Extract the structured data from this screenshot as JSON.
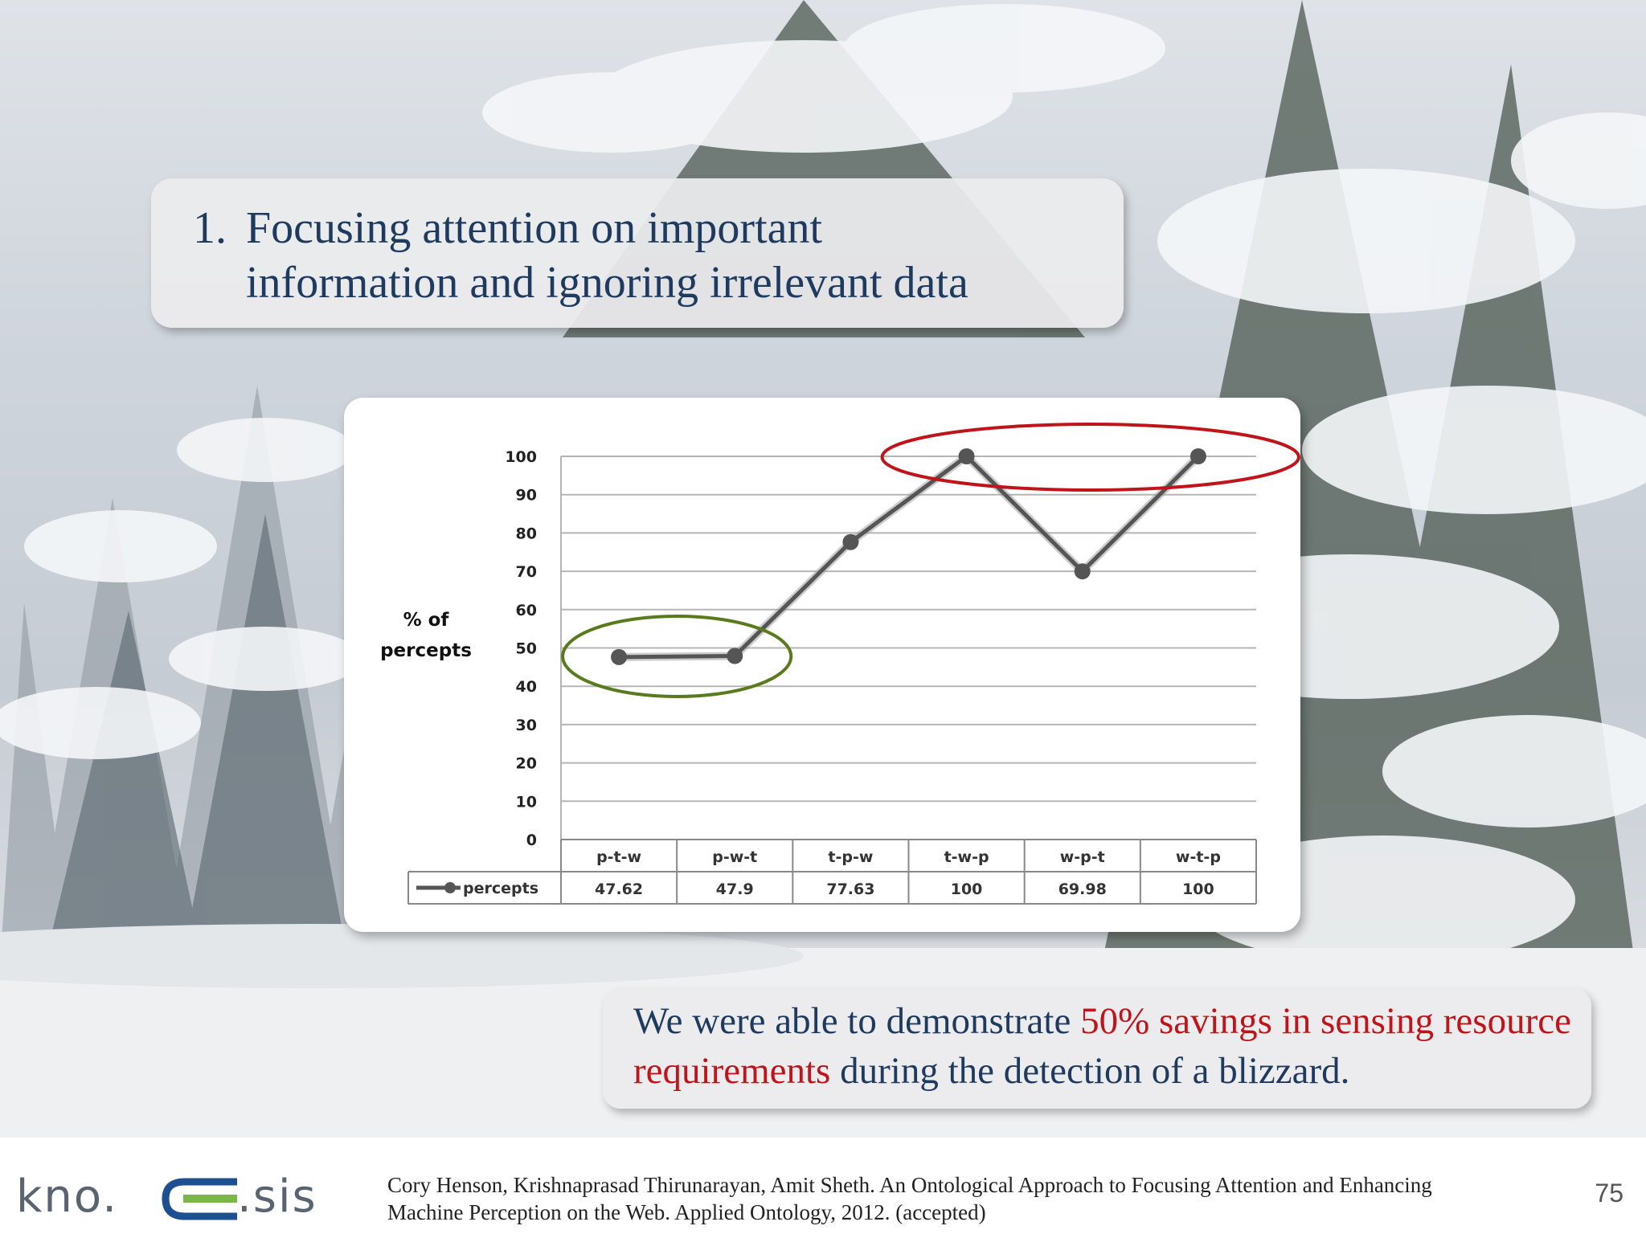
{
  "slide": {
    "title_number": "1.",
    "title_line1": "Focusing attention on important",
    "title_line2": "information and ignoring irrelevant data",
    "note_part1": "We were able to demonstrate ",
    "note_highlight": "50% savings in sensing resource requirements",
    "note_part2": " during the detection of a blizzard.",
    "citation_line1": "Cory Henson, Krishnaprasad Thirunarayan, Amit Sheth. An Ontological Approach to Focusing Attention and Enhancing",
    "citation_line2": "Machine Perception on the Web. Applied Ontology, 2012. (accepted)",
    "page_number": "75",
    "logo_left": "kno.",
    "logo_right": ".sis"
  },
  "colors": {
    "title_text": "#1f3a5f",
    "highlight": "#c0141b",
    "series_line": "#555555",
    "green_ellipse": "#5a7a1e",
    "red_ellipse": "#c0141b",
    "logo_blue": "#1d4f91",
    "logo_green": "#7ab648"
  },
  "chart_data": {
    "type": "line",
    "ylabel": "% of percepts",
    "ylim": [
      0,
      100
    ],
    "yticks": [
      "0",
      "10",
      "20",
      "30",
      "40",
      "50",
      "60",
      "70",
      "80",
      "90",
      "100"
    ],
    "categories": [
      "p-t-w",
      "p-w-t",
      "t-p-w",
      "t-w-p",
      "w-p-t",
      "w-t-p"
    ],
    "series": [
      {
        "name": "percepts",
        "values": [
          47.62,
          47.9,
          77.63,
          100,
          69.98,
          100
        ]
      }
    ],
    "table_values": [
      "47.62",
      "47.9",
      "77.63",
      "100",
      "69.98",
      "100"
    ],
    "grid": true,
    "data_table": true,
    "annotations": [
      {
        "shape": "ellipse",
        "color": "green",
        "around_categories": [
          "p-t-w",
          "p-w-t"
        ]
      },
      {
        "shape": "ellipse",
        "color": "red",
        "around_categories": [
          "t-w-p",
          "w-p-t",
          "w-t-p"
        ]
      }
    ]
  }
}
